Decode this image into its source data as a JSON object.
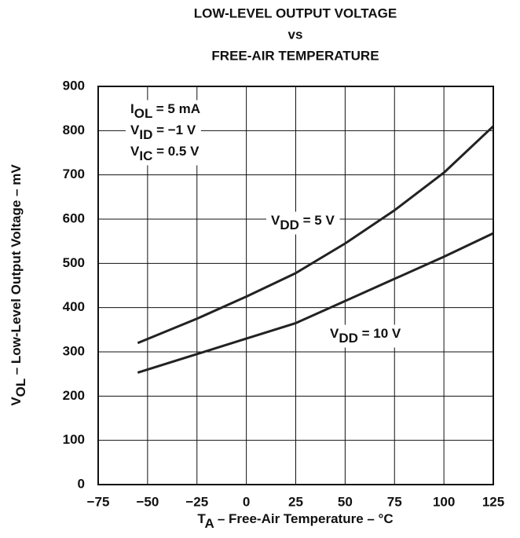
{
  "chart_data": {
    "type": "line",
    "title": [
      "LOW-LEVEL OUTPUT VOLTAGE",
      "vs",
      "FREE-AIR TEMPERATURE"
    ],
    "xlabel": {
      "main": "T",
      "sub": "A",
      "rest": " – Free-Air Temperature – °C"
    },
    "ylabel": {
      "main": "V",
      "sub": "OL",
      "rest": " – Low-Level Output Voltage – mV"
    },
    "annotations": [
      {
        "main": "I",
        "sub": "OL",
        "rest": " = 5 mA"
      },
      {
        "main": "V",
        "sub": "ID",
        "rest": " = −1 V"
      },
      {
        "main": "V",
        "sub": "IC",
        "rest": " = 0.5 V"
      }
    ],
    "x": [
      -55,
      -25,
      0,
      25,
      50,
      75,
      100,
      125
    ],
    "series": [
      {
        "label": {
          "main": "V",
          "sub": "DD",
          "rest": " = 5 V"
        },
        "color": "#222222",
        "values": [
          320,
          375,
          425,
          478,
          545,
          620,
          705,
          810
        ]
      },
      {
        "label": {
          "main": "V",
          "sub": "DD",
          "rest": " = 10 V"
        },
        "color": "#222222",
        "values": [
          253,
          295,
          330,
          365,
          415,
          465,
          515,
          568
        ]
      }
    ],
    "xlim": [
      -75,
      125
    ],
    "xticks": [
      {
        "value": -75,
        "label": "−75"
      },
      {
        "value": -50,
        "label": "−50"
      },
      {
        "value": -25,
        "label": "−25"
      },
      0,
      25,
      50,
      75,
      100,
      125
    ],
    "ylim": [
      0,
      900
    ],
    "yticks": [
      0,
      100,
      200,
      300,
      400,
      500,
      600,
      700,
      800,
      900
    ],
    "grid": true
  }
}
